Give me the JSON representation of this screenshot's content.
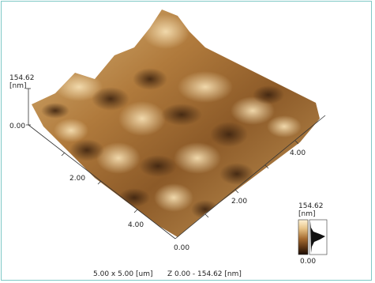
{
  "z_axis": {
    "max_label": "154.62",
    "unit_label": "[nm]",
    "min_label": "0.00"
  },
  "y_axis": {
    "tick_labels": [
      "2.00",
      "4.00"
    ]
  },
  "x_axis": {
    "origin_label": "0.00",
    "tick_labels": [
      "2.00",
      "4.00"
    ]
  },
  "color_scale": {
    "max_label": "154.62",
    "unit_label": "[nm]",
    "min_label": "0.00"
  },
  "footer": {
    "scan_size": "5.00 x 5.00 [um]",
    "z_range": "Z  0.00  -  154.62 [nm]"
  },
  "colors": {
    "frame_border": "#7fc9c6",
    "surface_dark": "#4a2e14",
    "surface_mid": "#a06a30",
    "surface_light": "#f2d9a8"
  }
}
